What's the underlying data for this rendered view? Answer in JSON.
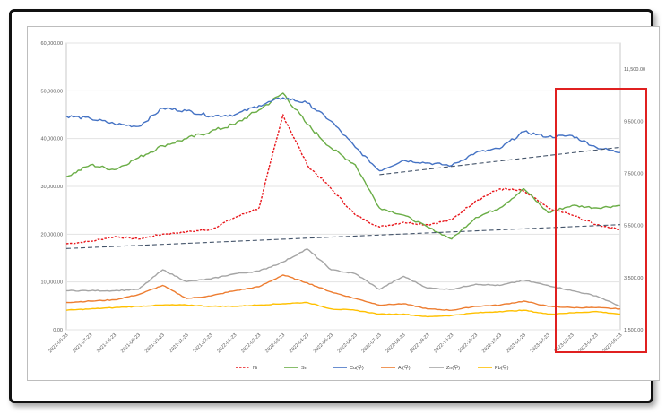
{
  "chart_data": {
    "type": "line",
    "title": "",
    "xlabel": "",
    "ylabel": "",
    "ylim_left": [
      0,
      60000
    ],
    "yticks_left": [
      "0.00",
      "10,000.00",
      "20,000.00",
      "30,000.00",
      "40,000.00",
      "50,000.00",
      "60,000.00"
    ],
    "ylim_right": [
      1500,
      12500
    ],
    "yticks_right": [
      "1,500.00",
      "3,500.00",
      "5,500.00",
      "7,500.00",
      "9,500.00",
      "11,500.00"
    ],
    "grid": true,
    "legend_position": "bottom",
    "categories": [
      "2021-06-23",
      "2021-07-23",
      "2021-08-23",
      "2021-09-23",
      "2021-10-23",
      "2021-11-23",
      "2021-12-23",
      "2022-01-23",
      "2022-02-23",
      "2022-03-23",
      "2022-04-23",
      "2022-05-23",
      "2022-06-23",
      "2022-07-23",
      "2022-08-23",
      "2022-09-23",
      "2022-10-23",
      "2022-11-23",
      "2022-12-23",
      "2023-01-23",
      "2023-02-23",
      "2023-03-23",
      "2023-04-23",
      "2023-05-23"
    ],
    "series": [
      {
        "name": "Ni",
        "axis": "left",
        "color": "#e8161b",
        "dash": true,
        "values": [
          18000,
          18500,
          19500,
          19000,
          20000,
          20500,
          21000,
          23500,
          25500,
          45000,
          34500,
          29500,
          24000,
          21500,
          22500,
          22000,
          23000,
          27000,
          29500,
          29000,
          25500,
          24000,
          22000,
          21000
        ]
      },
      {
        "name": "Sn",
        "axis": "left",
        "color": "#6aad46",
        "dash": false,
        "values": [
          32000,
          34500,
          33500,
          36000,
          38500,
          40000,
          41500,
          43000,
          46000,
          49500,
          43000,
          38000,
          34500,
          25500,
          24000,
          21500,
          19000,
          23500,
          25500,
          29500,
          24500,
          26000,
          25500,
          26000
        ]
      },
      {
        "name": "Cu(우)",
        "axis": "right",
        "color": "#4472c4",
        "dash": false,
        "values": [
          9700,
          9600,
          9400,
          9300,
          10000,
          9900,
          9700,
          9750,
          10100,
          10400,
          10200,
          9500,
          8500,
          7600,
          8000,
          7900,
          7800,
          8300,
          8450,
          9100,
          8900,
          8950,
          8500,
          8300
        ]
      },
      {
        "name": "Al(우)",
        "axis": "right",
        "color": "#ed7d31",
        "dash": false,
        "values": [
          2550,
          2600,
          2650,
          2850,
          3200,
          2700,
          2800,
          3000,
          3150,
          3600,
          3300,
          2950,
          2700,
          2450,
          2500,
          2300,
          2250,
          2400,
          2450,
          2600,
          2400,
          2350,
          2350,
          2300
        ]
      },
      {
        "name": "Zn(우)",
        "axis": "right",
        "color": "#a5a5a5",
        "dash": false,
        "values": [
          3000,
          3000,
          3000,
          3050,
          3800,
          3350,
          3450,
          3650,
          3750,
          4100,
          4600,
          3800,
          3650,
          3050,
          3550,
          3100,
          3050,
          3250,
          3200,
          3400,
          3200,
          3000,
          2800,
          2400
        ]
      },
      {
        "name": "Pb(우)",
        "axis": "right",
        "color": "#ffc000",
        "dash": false,
        "values": [
          2250,
          2300,
          2350,
          2400,
          2450,
          2450,
          2400,
          2400,
          2450,
          2500,
          2550,
          2300,
          2250,
          2100,
          2100,
          2000,
          2050,
          2150,
          2200,
          2250,
          2100,
          2150,
          2200,
          2100
        ]
      }
    ],
    "trendlines": [
      {
        "axis": "left",
        "color": "#44546a",
        "dash": true,
        "from": {
          "x": "2021-06-23",
          "y": 17000
        },
        "to": {
          "x": "2023-05-23",
          "y": 22000
        }
      },
      {
        "axis": "right",
        "color": "#44546a",
        "dash": true,
        "from": {
          "x": "2022-07-23",
          "y": 7450
        },
        "to": {
          "x": "2023-05-23",
          "y": 8500
        }
      }
    ],
    "annotation": {
      "type": "highlight-box",
      "color": "#e02020",
      "covers_categories": [
        "2023-03-23",
        "2023-05-23"
      ]
    }
  }
}
